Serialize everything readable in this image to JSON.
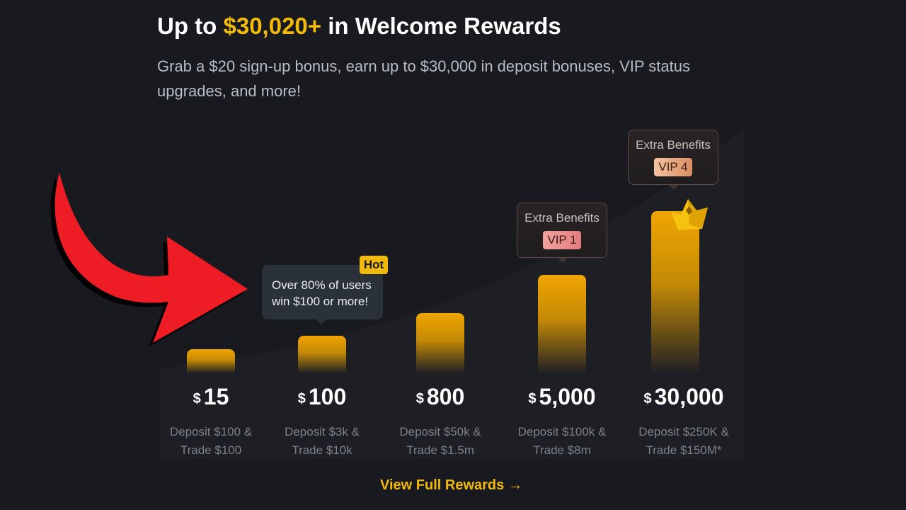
{
  "header": {
    "title_prefix": "Up to ",
    "title_amount": "$30,020+",
    "title_suffix": " in Welcome Rewards",
    "subtitle": "Grab a $20 sign-up bonus, earn up to $30,000 in deposit bonuses, VIP status upgrades, and more!"
  },
  "tiers": [
    {
      "currency": "$",
      "amount": "15",
      "condition_line1": "Deposit $100 &",
      "condition_line2": "Trade $100"
    },
    {
      "currency": "$",
      "amount": "100",
      "condition_line1": "Deposit $3k &",
      "condition_line2": "Trade $10k"
    },
    {
      "currency": "$",
      "amount": "800",
      "condition_line1": "Deposit $50k &",
      "condition_line2": "Trade $1.5m"
    },
    {
      "currency": "$",
      "amount": "5,000",
      "condition_line1": "Deposit $100k &",
      "condition_line2": "Trade $8m"
    },
    {
      "currency": "$",
      "amount": "30,000",
      "condition_line1": "Deposit $250K &",
      "condition_line2": "Trade $150M*"
    }
  ],
  "tooltip": {
    "line1": "Over 80% of users",
    "line2": "win $100 or more!",
    "badge": "Hot"
  },
  "vip_boxes": [
    {
      "label": "Extra Benefits",
      "badge": "VIP 1"
    },
    {
      "label": "Extra Benefits",
      "badge": "VIP 4"
    }
  ],
  "cta": {
    "label": "View Full Rewards",
    "arrow": "→"
  },
  "colors": {
    "background": "#181a20",
    "accent": "#f0b90b",
    "annotation_arrow": "#ee1c25"
  },
  "icons": {
    "crown": "crown-icon",
    "annotation": "red-arrow-annotation"
  }
}
